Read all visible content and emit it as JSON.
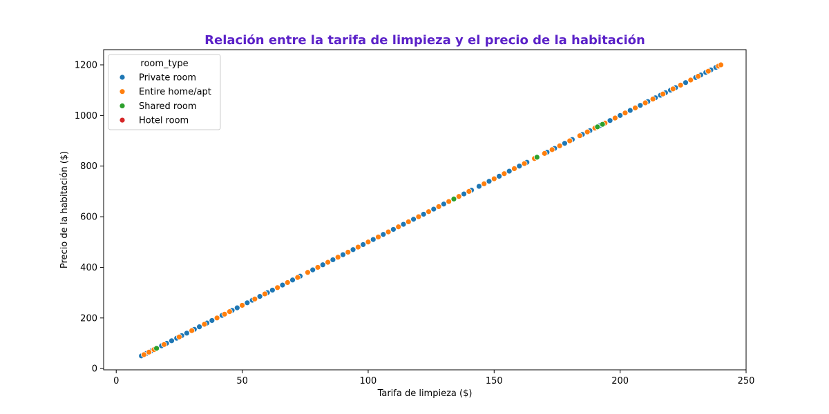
{
  "chart_data": {
    "type": "scatter",
    "title": "Relación entre la tarifa de limpieza y el precio de la habitación",
    "title_color": "#5b21c8",
    "xlabel": "Tarifa de limpieza ($)",
    "ylabel": "Precio de la habitación ($)",
    "xlim": [
      -5,
      250
    ],
    "ylim": [
      -5,
      1260
    ],
    "xticks": [
      0,
      50,
      100,
      150,
      200,
      250
    ],
    "yticks": [
      0,
      200,
      400,
      600,
      800,
      1000,
      1200
    ],
    "grid": false,
    "legend": {
      "title": "room_type",
      "placement": "top-left"
    },
    "series": [
      {
        "name": "Private room",
        "color": "#1f77b4",
        "x": [
          10,
          12,
          14,
          16,
          18,
          20,
          22,
          24,
          26,
          28,
          31,
          33,
          36,
          38,
          42,
          46,
          48,
          52,
          54,
          57,
          60,
          62,
          66,
          70,
          73,
          78,
          82,
          86,
          90,
          94,
          98,
          102,
          106,
          110,
          114,
          118,
          122,
          126,
          130,
          134,
          138,
          141,
          144,
          148,
          152,
          156,
          160,
          163,
          167,
          171,
          174,
          178,
          181,
          185,
          188,
          192,
          196,
          200,
          204,
          208,
          211,
          214,
          216,
          218,
          220,
          222,
          226,
          230,
          232,
          234,
          236,
          238
        ],
        "y": [
          50,
          60,
          70,
          80,
          90,
          100,
          110,
          120,
          130,
          140,
          155,
          165,
          180,
          190,
          210,
          230,
          240,
          260,
          270,
          285,
          300,
          310,
          330,
          350,
          365,
          390,
          410,
          430,
          450,
          470,
          490,
          510,
          530,
          550,
          570,
          590,
          610,
          630,
          650,
          670,
          690,
          705,
          720,
          740,
          760,
          780,
          800,
          815,
          835,
          855,
          870,
          890,
          905,
          925,
          940,
          960,
          980,
          1000,
          1020,
          1040,
          1055,
          1070,
          1080,
          1090,
          1100,
          1110,
          1130,
          1150,
          1160,
          1170,
          1180,
          1190
        ]
      },
      {
        "name": "Entire home/apt",
        "color": "#ff7f0e",
        "x": [
          11,
          13,
          15,
          19,
          25,
          30,
          35,
          40,
          43,
          45,
          50,
          55,
          59,
          64,
          68,
          72,
          76,
          80,
          84,
          88,
          92,
          96,
          100,
          104,
          108,
          112,
          116,
          120,
          124,
          128,
          132,
          136,
          140,
          146,
          150,
          154,
          158,
          162,
          166,
          170,
          173,
          176,
          180,
          184,
          187,
          190,
          194,
          198,
          202,
          206,
          210,
          213,
          217,
          221,
          224,
          228,
          231,
          235,
          239,
          240
        ],
        "y": [
          55,
          65,
          75,
          95,
          125,
          150,
          175,
          200,
          215,
          225,
          250,
          275,
          295,
          320,
          340,
          360,
          380,
          400,
          420,
          440,
          460,
          480,
          500,
          520,
          540,
          560,
          580,
          600,
          620,
          640,
          660,
          680,
          700,
          730,
          750,
          770,
          790,
          810,
          830,
          850,
          865,
          880,
          900,
          920,
          935,
          950,
          970,
          990,
          1010,
          1030,
          1050,
          1065,
          1085,
          1105,
          1120,
          1140,
          1155,
          1175,
          1195,
          1200
        ]
      },
      {
        "name": "Shared room",
        "color": "#2ca02c",
        "x": [
          16,
          134,
          167,
          191,
          193
        ],
        "y": [
          80,
          670,
          835,
          955,
          965
        ]
      },
      {
        "name": "Hotel room",
        "color": "#d62728",
        "x": [],
        "y": []
      }
    ]
  }
}
